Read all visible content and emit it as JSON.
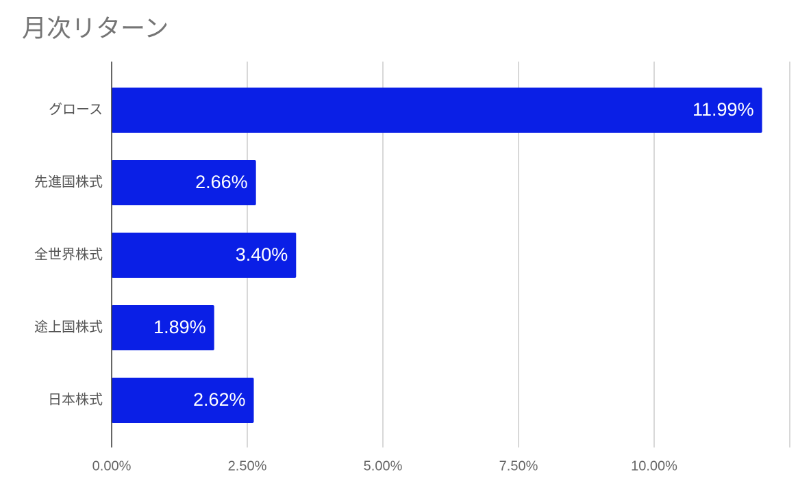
{
  "chart_data": {
    "type": "bar",
    "orientation": "horizontal",
    "title": "月次リターン",
    "categories": [
      "グロース",
      "先進国株式",
      "全世界株式",
      "途上国株式",
      "日本株式"
    ],
    "values": [
      11.99,
      2.66,
      3.4,
      1.89,
      2.62
    ],
    "value_labels": [
      "11.99%",
      "2.66%",
      "3.40%",
      "1.89%",
      "2.62%"
    ],
    "color": "#0a1fe6",
    "xlim": [
      0,
      12.5
    ],
    "xticks": [
      {
        "value": 0,
        "label": "0.00%"
      },
      {
        "value": 2.5,
        "label": "2.50%"
      },
      {
        "value": 5,
        "label": "5.00%"
      },
      {
        "value": 7.5,
        "label": "7.50%"
      },
      {
        "value": 10,
        "label": "10.00%"
      }
    ],
    "grid": true
  }
}
